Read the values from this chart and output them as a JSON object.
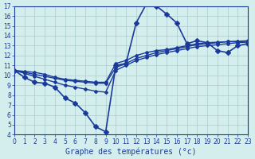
{
  "title": "Graphe des températures (°c)",
  "bg_color": "#d4eeee",
  "line_color": "#1a3a9a",
  "grid_color": "#aacccc",
  "xlim": [
    0,
    23
  ],
  "ylim": [
    4,
    17
  ],
  "xticks": [
    0,
    1,
    2,
    3,
    4,
    5,
    6,
    7,
    8,
    9,
    10,
    11,
    12,
    13,
    14,
    15,
    16,
    17,
    18,
    19,
    20,
    21,
    22,
    23
  ],
  "yticks": [
    4,
    5,
    6,
    7,
    8,
    9,
    10,
    11,
    12,
    13,
    14,
    15,
    16,
    17
  ],
  "series": [
    {
      "x": [
        0,
        1,
        2,
        3,
        4,
        5,
        6,
        7,
        8,
        9,
        10,
        11,
        12,
        13,
        14,
        15,
        16,
        17,
        18,
        19,
        20,
        21,
        22,
        23
      ],
      "y": [
        10.5,
        9.8,
        9.3,
        9.2,
        8.8,
        7.7,
        7.2,
        6.2,
        4.8,
        4.3,
        11.0,
        11.2,
        15.3,
        17.2,
        17.0,
        16.2,
        15.3,
        13.2,
        13.5,
        13.3,
        12.5,
        12.3,
        13.0,
        13.2
      ],
      "marker": "D",
      "markersize": 3,
      "linewidth": 1.2
    },
    {
      "x": [
        0,
        1,
        2,
        3,
        4,
        5,
        6,
        7,
        8,
        9,
        10,
        11,
        12,
        13,
        14,
        15,
        16,
        17,
        18,
        19,
        20,
        21,
        22,
        23
      ],
      "y": [
        10.5,
        10.2,
        9.9,
        9.6,
        9.3,
        9.0,
        8.8,
        8.6,
        8.4,
        8.3,
        10.5,
        11.0,
        11.5,
        11.8,
        12.1,
        12.3,
        12.5,
        12.7,
        12.9,
        13.0,
        13.1,
        13.2,
        13.3,
        13.35
      ],
      "marker": "D",
      "markersize": 2,
      "linewidth": 1.0
    },
    {
      "x": [
        0,
        1,
        2,
        3,
        4,
        5,
        6,
        7,
        8,
        9,
        10,
        11,
        12,
        13,
        14,
        15,
        16,
        17,
        18,
        19,
        20,
        21,
        22,
        23
      ],
      "y": [
        10.5,
        10.3,
        10.1,
        9.9,
        9.7,
        9.5,
        9.4,
        9.3,
        9.2,
        9.2,
        10.8,
        11.2,
        11.7,
        12.0,
        12.3,
        12.5,
        12.7,
        12.9,
        13.1,
        13.2,
        13.3,
        13.4,
        13.4,
        13.45
      ],
      "marker": "D",
      "markersize": 2,
      "linewidth": 1.0
    },
    {
      "x": [
        0,
        1,
        2,
        3,
        4,
        5,
        6,
        7,
        8,
        9,
        10,
        11,
        12,
        13,
        14,
        15,
        16,
        17,
        18,
        19,
        20,
        21,
        22,
        23
      ],
      "y": [
        10.5,
        10.4,
        10.3,
        10.1,
        9.8,
        9.6,
        9.5,
        9.4,
        9.3,
        9.3,
        11.2,
        11.5,
        12.0,
        12.3,
        12.5,
        12.6,
        12.8,
        13.0,
        13.2,
        13.3,
        13.35,
        13.4,
        13.45,
        13.5
      ],
      "marker": "D",
      "markersize": 2,
      "linewidth": 1.0
    }
  ]
}
